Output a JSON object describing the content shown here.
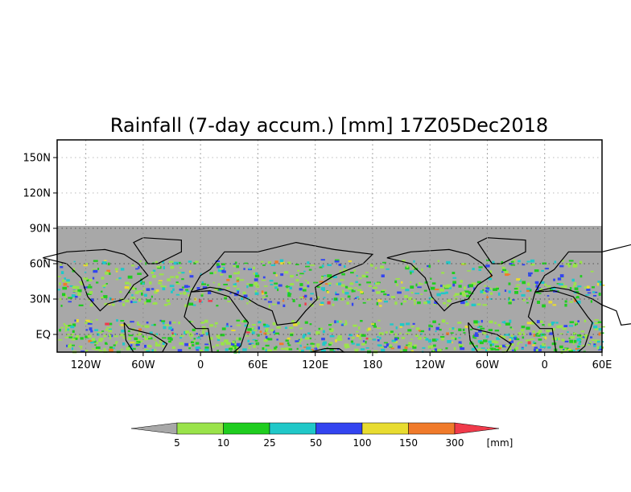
{
  "title": "Rainfall (7-day accum.) [mm] 17Z05Dec2018",
  "map": {
    "lon_range": [
      -150,
      60
    ],
    "lat_range": [
      -15,
      165
    ],
    "data_lat_max": 90,
    "lat_ticks": [
      {
        "value": 150,
        "label": "150N"
      },
      {
        "value": 120,
        "label": "120N"
      },
      {
        "value": 90,
        "label": "90N"
      },
      {
        "value": 60,
        "label": "60N"
      },
      {
        "value": 30,
        "label": "30N"
      },
      {
        "value": 0,
        "label": "EQ"
      }
    ],
    "lon_ticks": [
      {
        "value": -120,
        "label": "120W"
      },
      {
        "value": -60,
        "label": "60W"
      },
      {
        "value": 0,
        "label": "0"
      },
      {
        "value": 60,
        "label": "60E"
      },
      {
        "value": 120,
        "label": "120E"
      },
      {
        "value": 180,
        "label": "180"
      },
      {
        "value": 240,
        "label": "120W"
      },
      {
        "value": 300,
        "label": "60W"
      },
      {
        "value": 360,
        "label": "0"
      },
      {
        "value": 420,
        "label": "60E"
      }
    ],
    "background_color": "#a8a8a8",
    "grid": "dotted"
  },
  "colorbar": {
    "unit": "[mm]",
    "thresholds": [
      "5",
      "10",
      "25",
      "50",
      "100",
      "150",
      "300"
    ],
    "colors": [
      "#a8a8a8",
      "#9ae34a",
      "#1fcd1f",
      "#20c8c8",
      "#3344f0",
      "#e8dc30",
      "#f07a2a",
      "#f03a4a"
    ]
  }
}
